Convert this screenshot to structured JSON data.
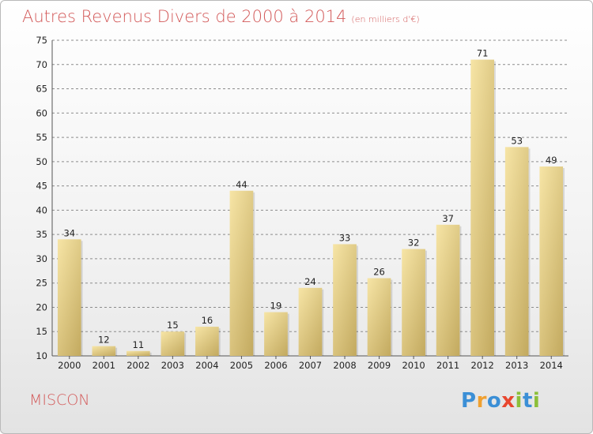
{
  "header": {
    "title": "Autres Revenus Divers de 2000 à 2014",
    "unit": "(en milliers d'€)"
  },
  "footer": {
    "commune": "MISCON",
    "logo_text": "Proxiti"
  },
  "colors": {
    "title": "#d35a5a",
    "bar_light": "#f6e3a3",
    "bar_dark": "#c4ab60",
    "grid": "#8c8c8c"
  },
  "chart_data": {
    "type": "bar",
    "title": "Autres Revenus Divers de 2000 à 2014",
    "subtitle": "(en milliers d'€)",
    "categories": [
      "2000",
      "2001",
      "2002",
      "2003",
      "2004",
      "2005",
      "2006",
      "2007",
      "2008",
      "2009",
      "2010",
      "2011",
      "2012",
      "2013",
      "2014"
    ],
    "values": [
      34,
      12,
      11,
      15,
      16,
      44,
      19,
      24,
      33,
      26,
      32,
      37,
      71,
      53,
      49
    ],
    "ylim": [
      10,
      75
    ],
    "yticks": [
      10,
      15,
      20,
      25,
      30,
      35,
      40,
      45,
      50,
      55,
      60,
      65,
      70,
      75
    ],
    "grid": "horizontal dashed",
    "legend": "none",
    "data_labels": true
  }
}
